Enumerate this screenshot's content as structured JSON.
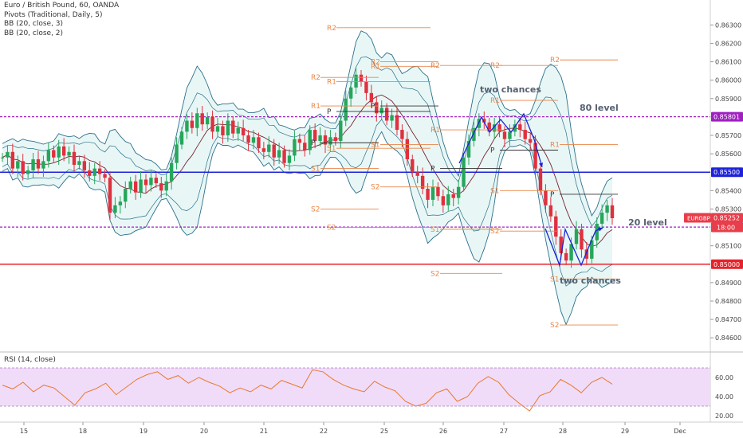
{
  "legend": {
    "symbol": "Euro / British Pound, 60, OANDA",
    "pivots": "Pivots (Traditional, Daily, 5)",
    "bb1": "BB (20, close, 3)",
    "bb2": "BB (20, close, 2)",
    "rsi": "RSI (14, close)"
  },
  "chart_data": {
    "type": "candlestick",
    "symbol": "EURGBP",
    "y_ticks": [
      "0.86300",
      "0.86200",
      "0.86100",
      "0.86000",
      "0.85900",
      "0.85700",
      "0.85600",
      "0.85400",
      "0.85300",
      "0.85100",
      "0.84900",
      "0.84800",
      "0.84700",
      "0.84600"
    ],
    "y_range": [
      0.84575,
      0.86375
    ],
    "x_ticks": [
      "15",
      "18",
      "19",
      "20",
      "21",
      "22",
      "25",
      "26",
      "27",
      "28",
      "29",
      "Dec"
    ],
    "horizontal_lines": [
      {
        "value": 0.855,
        "color": "#1e22d8",
        "label": "0.85500",
        "style": "solid"
      },
      {
        "value": 0.85,
        "color": "#e8222a",
        "label": "0.85000",
        "style": "solid"
      },
      {
        "value": 0.85801,
        "color": "#a020c0",
        "label": "0.85801",
        "style": "dashed"
      },
      {
        "value": 0.85202,
        "color": "#a020c0",
        "label": "0.85202",
        "style": "dashed"
      }
    ],
    "price_tags": [
      {
        "label": "EURGBP",
        "value": "0.85252",
        "color": "#e83d4a"
      },
      {
        "label": "",
        "value": "18:00",
        "color": "#e83d4a"
      }
    ],
    "annotations": [
      "two chances",
      "80 level",
      "20 level",
      "two chances"
    ],
    "pivot_labels": {
      "R2": "R2",
      "R1": "R1",
      "P": "P",
      "S1": "S1",
      "S2": "S2"
    },
    "close_series": [
      0.8558,
      0.8561,
      0.8552,
      0.8556,
      0.8549,
      0.8551,
      0.8557,
      0.8552,
      0.8556,
      0.8562,
      0.8558,
      0.8564,
      0.8559,
      0.8561,
      0.8554,
      0.8556,
      0.8551,
      0.8548,
      0.8552,
      0.8549,
      0.8547,
      0.8528,
      0.8532,
      0.8534,
      0.8541,
      0.8545,
      0.8539,
      0.8546,
      0.8543,
      0.8547,
      0.8544,
      0.854,
      0.8545,
      0.8555,
      0.8565,
      0.8572,
      0.8578,
      0.8574,
      0.8582,
      0.8576,
      0.858,
      0.8572,
      0.8575,
      0.857,
      0.8578,
      0.8571,
      0.8574,
      0.857,
      0.8566,
      0.8569,
      0.8563,
      0.8561,
      0.8565,
      0.8558,
      0.8562,
      0.8555,
      0.8559,
      0.8568,
      0.8566,
      0.8562,
      0.8573,
      0.8567,
      0.857,
      0.8565,
      0.8569,
      0.8567,
      0.8578,
      0.859,
      0.8596,
      0.8603,
      0.8599,
      0.8593,
      0.8588,
      0.8582,
      0.8585,
      0.8578,
      0.8581,
      0.8573,
      0.8568,
      0.8557,
      0.855,
      0.8548,
      0.8541,
      0.8535,
      0.8542,
      0.8537,
      0.8532,
      0.8538,
      0.8536,
      0.8542,
      0.8558,
      0.8567,
      0.8574,
      0.8579,
      0.8577,
      0.8572,
      0.8576,
      0.8572,
      0.8568,
      0.8572,
      0.8576,
      0.8573,
      0.8568,
      0.8566,
      0.8552,
      0.854,
      0.8532,
      0.8526,
      0.8515,
      0.8506,
      0.8502,
      0.8511,
      0.8519,
      0.8508,
      0.8503,
      0.8513,
      0.8522,
      0.8528,
      0.8532,
      0.8525
    ],
    "rsi": {
      "levels": [
        70,
        30
      ],
      "y_ticks": [
        "60.00",
        "40.00",
        "20.00"
      ],
      "values": [
        52,
        48,
        55,
        45,
        52,
        49,
        40,
        31,
        44,
        48,
        54,
        42,
        50,
        58,
        63,
        66,
        58,
        62,
        54,
        60,
        55,
        51,
        44,
        49,
        45,
        52,
        48,
        57,
        53,
        49,
        68,
        66,
        58,
        52,
        48,
        45,
        56,
        50,
        46,
        35,
        30,
        33,
        44,
        48,
        35,
        40,
        54,
        61,
        55,
        42,
        33,
        25,
        41,
        45,
        58,
        52,
        44,
        55,
        60,
        53
      ]
    }
  }
}
